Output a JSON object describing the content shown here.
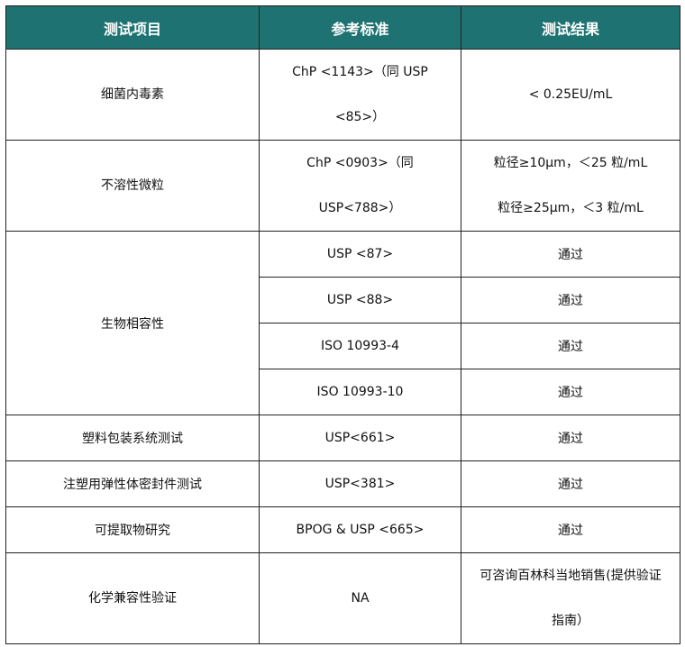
{
  "colors": {
    "header_bg": "#1f7272",
    "header_text": "#ffffff"
  },
  "table": {
    "headers": [
      "测试项目",
      "参考标准",
      "测试结果"
    ],
    "rows": [
      {
        "item": "细菌内毒素",
        "standard": [
          "ChP <1143>（同 USP",
          "<85>）"
        ],
        "result": [
          "< 0.25EU/mL"
        ]
      },
      {
        "item": "不溶性微粒",
        "standard": [
          "ChP <0903>（同",
          "USP<788>）"
        ],
        "result": [
          "粒径≥10μm，＜25 粒/mL",
          "粒径≥25μm，＜3 粒/mL"
        ]
      },
      {
        "item": "生物相容性",
        "subrows": [
          {
            "standard": "USP <87>",
            "result": "通过"
          },
          {
            "standard": "USP <88>",
            "result": "通过"
          },
          {
            "standard": "ISO 10993-4",
            "result": "通过"
          },
          {
            "standard": "ISO 10993-10",
            "result": "通过"
          }
        ]
      },
      {
        "item": "塑料包装系统测试",
        "standard": [
          "USP<661>"
        ],
        "result": [
          "通过"
        ]
      },
      {
        "item": "注塑用弹性体密封件测试",
        "standard": [
          "USP<381>"
        ],
        "result": [
          "通过"
        ]
      },
      {
        "item": "可提取物研究",
        "standard": [
          "BPOG & USP <665>"
        ],
        "result": [
          "通过"
        ]
      },
      {
        "item": "化学兼容性验证",
        "standard": [
          "NA"
        ],
        "result": [
          "可咨询百林科当地销售(提供验证",
          "指南）"
        ]
      }
    ]
  }
}
